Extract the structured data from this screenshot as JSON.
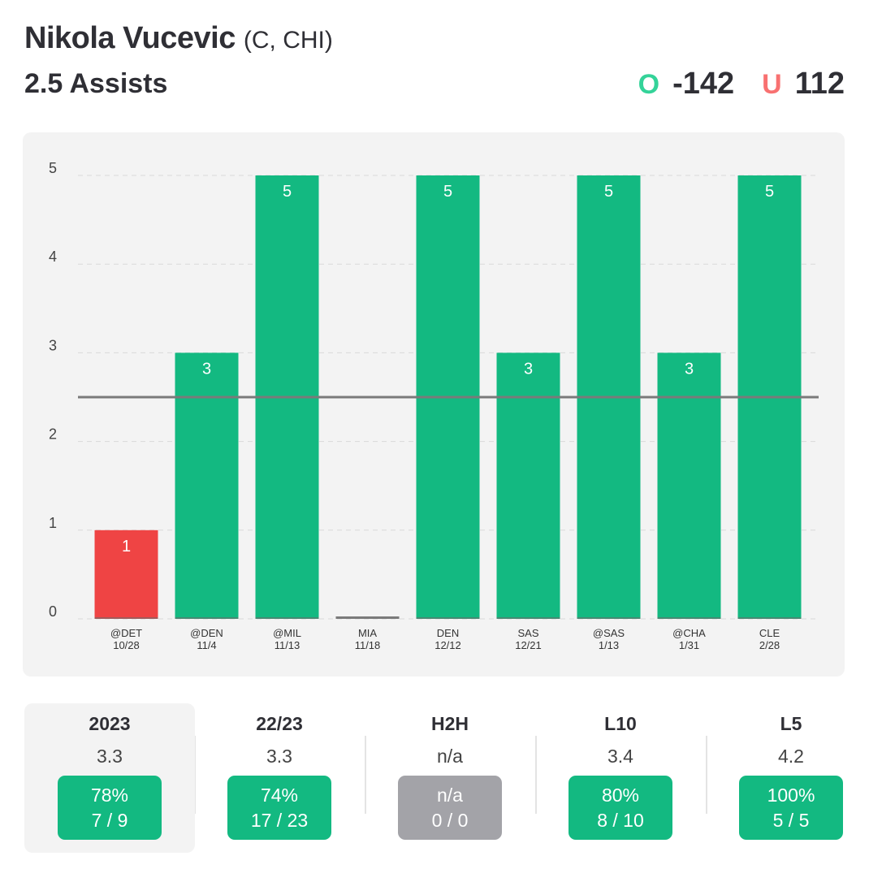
{
  "header": {
    "player_name": "Nikola Vucevic",
    "player_meta": "(C, CHI)",
    "prop_line": "2.5 Assists",
    "over_letter": "O",
    "over_odds": "-142",
    "under_letter": "U",
    "under_odds": "112"
  },
  "colors": {
    "over": "#13b981",
    "under": "#f87171",
    "bar_hit": "#13b981",
    "bar_miss": "#ef4444",
    "bar_zero": "#7a7a7a",
    "badge_na": "#a3a3a8",
    "line": "#7a7a7a"
  },
  "chart_data": {
    "type": "bar",
    "title": "",
    "xlabel": "",
    "ylabel": "",
    "ylim": [
      0,
      5
    ],
    "yticks": [
      0,
      1,
      2,
      3,
      4,
      5
    ],
    "threshold": 2.5,
    "categories": [
      {
        "opponent": "@DET",
        "date": "10/28"
      },
      {
        "opponent": "@DEN",
        "date": "11/4"
      },
      {
        "opponent": "@MIL",
        "date": "11/13"
      },
      {
        "opponent": "MIA",
        "date": "11/18"
      },
      {
        "opponent": "DEN",
        "date": "12/12"
      },
      {
        "opponent": "SAS",
        "date": "12/21"
      },
      {
        "opponent": "@SAS",
        "date": "1/13"
      },
      {
        "opponent": "@CHA",
        "date": "1/31"
      },
      {
        "opponent": "CLE",
        "date": "2/28"
      }
    ],
    "values": [
      1,
      3,
      5,
      0,
      5,
      3,
      5,
      3,
      5
    ]
  },
  "stats": [
    {
      "label": "2023",
      "average": "3.3",
      "pct": "78%",
      "record": "7 / 9",
      "status": "hit",
      "active": true
    },
    {
      "label": "22/23",
      "average": "3.3",
      "pct": "74%",
      "record": "17 / 23",
      "status": "hit",
      "active": false
    },
    {
      "label": "H2H",
      "average": "n/a",
      "pct": "n/a",
      "record": "0 / 0",
      "status": "na",
      "active": false
    },
    {
      "label": "L10",
      "average": "3.4",
      "pct": "80%",
      "record": "8 / 10",
      "status": "hit",
      "active": false
    },
    {
      "label": "L5",
      "average": "4.2",
      "pct": "100%",
      "record": "5 / 5",
      "status": "hit",
      "active": false
    }
  ]
}
